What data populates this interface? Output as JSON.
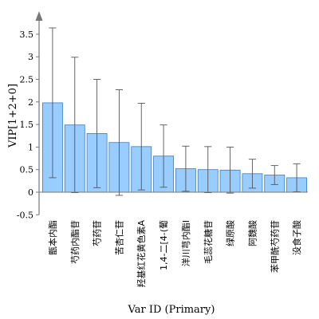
{
  "chart_data": {
    "type": "bar",
    "ylabel": "VIP[1+2+0]",
    "xlabel": "Var ID (Primary)",
    "ylim": [
      -0.5,
      3.8
    ],
    "yticks": [
      -0.5,
      0,
      0.5,
      1,
      1.5,
      2,
      2.5,
      3,
      3.5
    ],
    "grid": false,
    "categories": [
      "甑本内酯",
      "芍药内酯苷",
      "芍药苷",
      "苦杏仁苷",
      "羟基红花黄色素A",
      "1,4-二[4-(葡",
      "洋川芎内酯I",
      "毛蕊花糖苷",
      "绿原酸",
      "阿魏酸",
      "苯甲酰芍药苷",
      "没食子酸"
    ],
    "values": [
      1.98,
      1.49,
      1.3,
      1.1,
      1.01,
      0.8,
      0.52,
      0.5,
      0.49,
      0.41,
      0.38,
      0.32
    ],
    "errors": [
      1.66,
      1.5,
      1.2,
      1.17,
      0.96,
      0.69,
      0.5,
      0.51,
      0.51,
      0.32,
      0.21,
      0.31
    ],
    "colors": {
      "bar_fill": "#99ccff",
      "bar_stroke": "#3a7cc0",
      "error_bar": "#555555",
      "axis": "#777777"
    }
  }
}
